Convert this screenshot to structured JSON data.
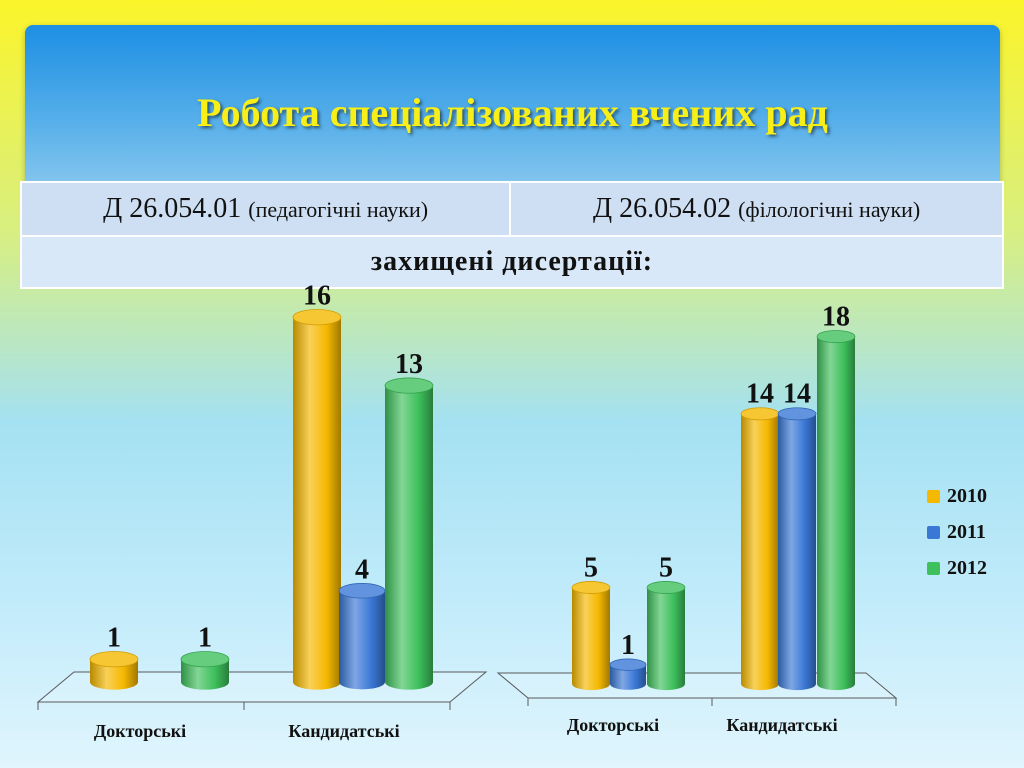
{
  "slide": {
    "title": "Робота спеціалізованих вчених рад"
  },
  "table": {
    "council1_code": "Д 26.054.01",
    "council1_field": "(педагогічні науки)",
    "council2_code": "Д 26.054.02",
    "council2_field": "(філологічні науки)",
    "subheader": "захищені дисертації:"
  },
  "colors": {
    "s2010": "#f5b800",
    "s2011": "#3a78d6",
    "s2012": "#3ec05c"
  },
  "chart_data": [
    {
      "type": "bar",
      "categories": [
        "Докторські",
        "Кандидатські"
      ],
      "series": [
        {
          "name": "2010",
          "values": [
            1,
            16
          ]
        },
        {
          "name": "2011",
          "values": [
            0,
            4
          ]
        },
        {
          "name": "2012",
          "values": [
            1,
            13
          ]
        }
      ],
      "data_labels": [
        [
          "1",
          null,
          "1"
        ],
        [
          "16",
          "4",
          "13"
        ]
      ],
      "ylim": [
        0,
        16
      ],
      "grid": false,
      "legend": "none"
    },
    {
      "type": "bar",
      "categories": [
        "Докторські",
        "Кандидатські"
      ],
      "series": [
        {
          "name": "2010",
          "values": [
            5,
            14
          ]
        },
        {
          "name": "2011",
          "values": [
            1,
            14
          ]
        },
        {
          "name": "2012",
          "values": [
            5,
            18
          ]
        }
      ],
      "data_labels": [
        [
          "5",
          "1",
          "5"
        ],
        [
          "14",
          "14",
          "18"
        ]
      ],
      "ylim": [
        0,
        18
      ],
      "grid": false,
      "legend": "right"
    }
  ]
}
